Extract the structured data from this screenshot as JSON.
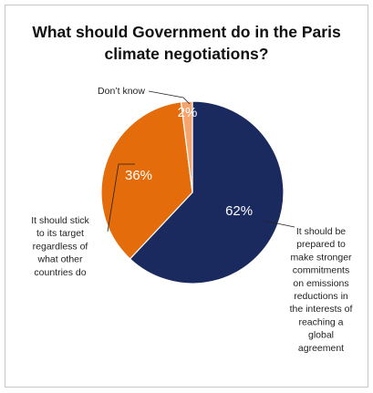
{
  "chart_data": {
    "type": "pie",
    "title_lines": [
      "What should Government do in the Paris",
      "climate negotiations?"
    ],
    "slices": [
      {
        "label": "It should be prepared to make stronger commitments on emissions reductions in the interests of reaching a global agreement",
        "label_lines": [
          "It should be",
          "prepared to",
          "make stronger",
          "commitments",
          "on emissions",
          "reductions in",
          "the interests of",
          "reaching a",
          "global",
          "agreement"
        ],
        "value": 62,
        "value_label": "62%",
        "color": "#1b2a5e"
      },
      {
        "label": "It should stick to its target regardless of what other countries do",
        "label_lines": [
          "It should stick",
          "to its target",
          "regardless of",
          "what other",
          "countries do"
        ],
        "value": 36,
        "value_label": "36%",
        "color": "#e46c0a"
      },
      {
        "label": "Don't know",
        "label_lines": [
          "Don’t know"
        ],
        "value": 2,
        "value_label": "2%",
        "color": "#f5a46e"
      }
    ],
    "legend": "none"
  }
}
